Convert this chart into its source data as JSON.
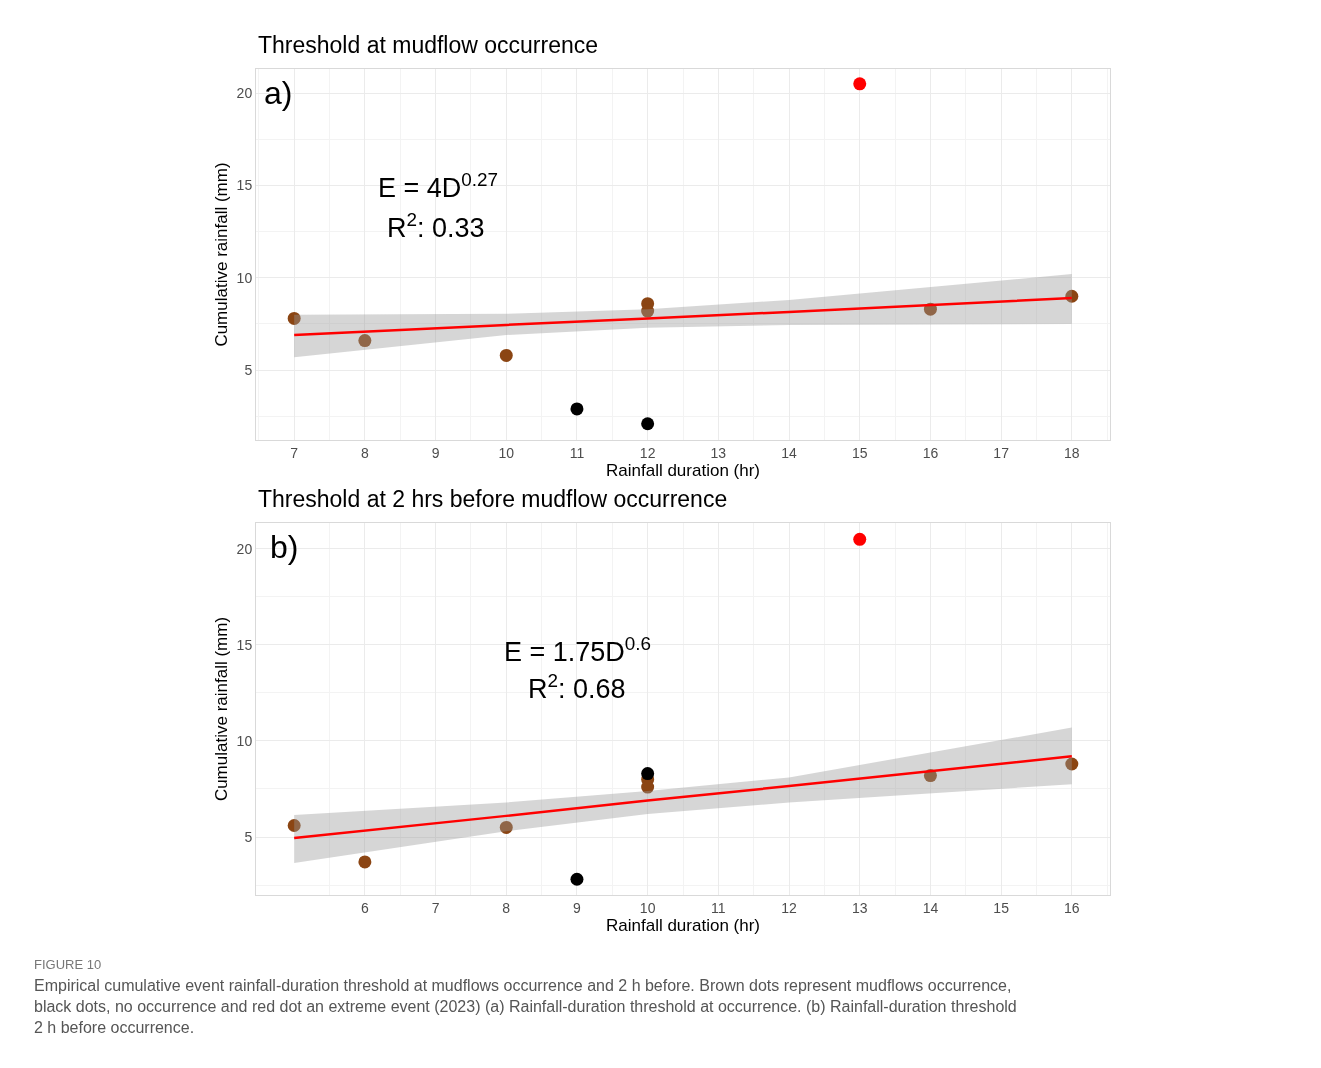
{
  "chart_data": [
    {
      "type": "scatter",
      "title": "Threshold at mudflow occurrence",
      "xlabel": "Rainfall duration (hr)",
      "ylabel": "Cumulative rainfall (mm)",
      "xlim": [
        6.46,
        18.54
      ],
      "ylim": [
        1.22,
        21.3
      ],
      "xticks": [
        7,
        8,
        9,
        10,
        11,
        12,
        13,
        14,
        15,
        16,
        17,
        18
      ],
      "yticks": [
        5,
        10,
        15,
        20
      ],
      "grid": true,
      "annotations": [
        "a)",
        "E = 4D$^{0.27}$",
        "R$^{2}$: 0.33"
      ],
      "series": [
        {
          "color": "#8b4513",
          "marker": "circle",
          "x": [
            7,
            8,
            10,
            12,
            12,
            16,
            18
          ],
          "values": [
            7.8,
            6.6,
            5.8,
            8.6,
            8.2,
            8.3,
            9.0
          ]
        },
        {
          "color": "#000000",
          "marker": "circle",
          "x": [
            11,
            12
          ],
          "values": [
            2.9,
            2.1
          ]
        },
        {
          "color": "#ff0000",
          "marker": "circle",
          "x": [
            15
          ],
          "values": [
            20.5
          ]
        },
        {
          "type": "line",
          "color": "#ff0000",
          "x": [
            7,
            10,
            12,
            14,
            18
          ],
          "values": [
            6.9,
            7.45,
            7.8,
            8.15,
            8.9
          ],
          "lower": [
            5.7,
            6.9,
            7.3,
            7.45,
            7.5
          ],
          "upper": [
            8.0,
            8.05,
            8.3,
            8.8,
            10.2
          ]
        }
      ]
    },
    {
      "type": "scatter",
      "title": "Threshold at 2 hrs before mudflow occurrence",
      "xlabel": "Rainfall duration (hr)",
      "ylabel": "Cumulative rainfall (mm)",
      "xlim": [
        4.46,
        16.54
      ],
      "ylim": [
        1.98,
        21.35
      ],
      "xticks": [
        6,
        7,
        8,
        9,
        10,
        11,
        12,
        13,
        14,
        15,
        16
      ],
      "yticks": [
        5,
        10,
        15,
        20
      ],
      "grid": true,
      "annotations": [
        "b)",
        "E = 1.75D$^{0.6}$",
        "R$^{2}$: 0.68",
        "FIGURE 10",
        "Empirical cumulative event rainfall-duration threshold at mudflows occurrence and 2 h before. Brown dots represent mudflows occurrence, black dots, no occurrence and red dot an extreme event (2023) (a) Rainfall-duration threshold at occurrence. (b) Rainfall-duration threshold 2 h before occurrence."
      ],
      "series": [
        {
          "color": "#8b4513",
          "marker": "circle",
          "x": [
            5,
            6,
            8,
            10,
            10,
            14,
            16
          ],
          "values": [
            5.6,
            3.7,
            5.5,
            8.0,
            7.6,
            8.2,
            8.8
          ]
        },
        {
          "color": "#000000",
          "marker": "circle",
          "x": [
            9,
            10
          ],
          "values": [
            2.8,
            8.3
          ]
        },
        {
          "color": "#ff0000",
          "marker": "circle",
          "x": [
            13
          ],
          "values": [
            20.5
          ]
        },
        {
          "type": "line",
          "color": "#ff0000",
          "x": [
            5,
            8,
            10,
            12,
            16
          ],
          "values": [
            4.95,
            6.1,
            6.9,
            7.65,
            9.2
          ],
          "lower": [
            3.65,
            5.3,
            6.2,
            6.8,
            7.75
          ],
          "upper": [
            6.15,
            6.8,
            7.4,
            8.1,
            10.7
          ]
        }
      ]
    }
  ]
}
